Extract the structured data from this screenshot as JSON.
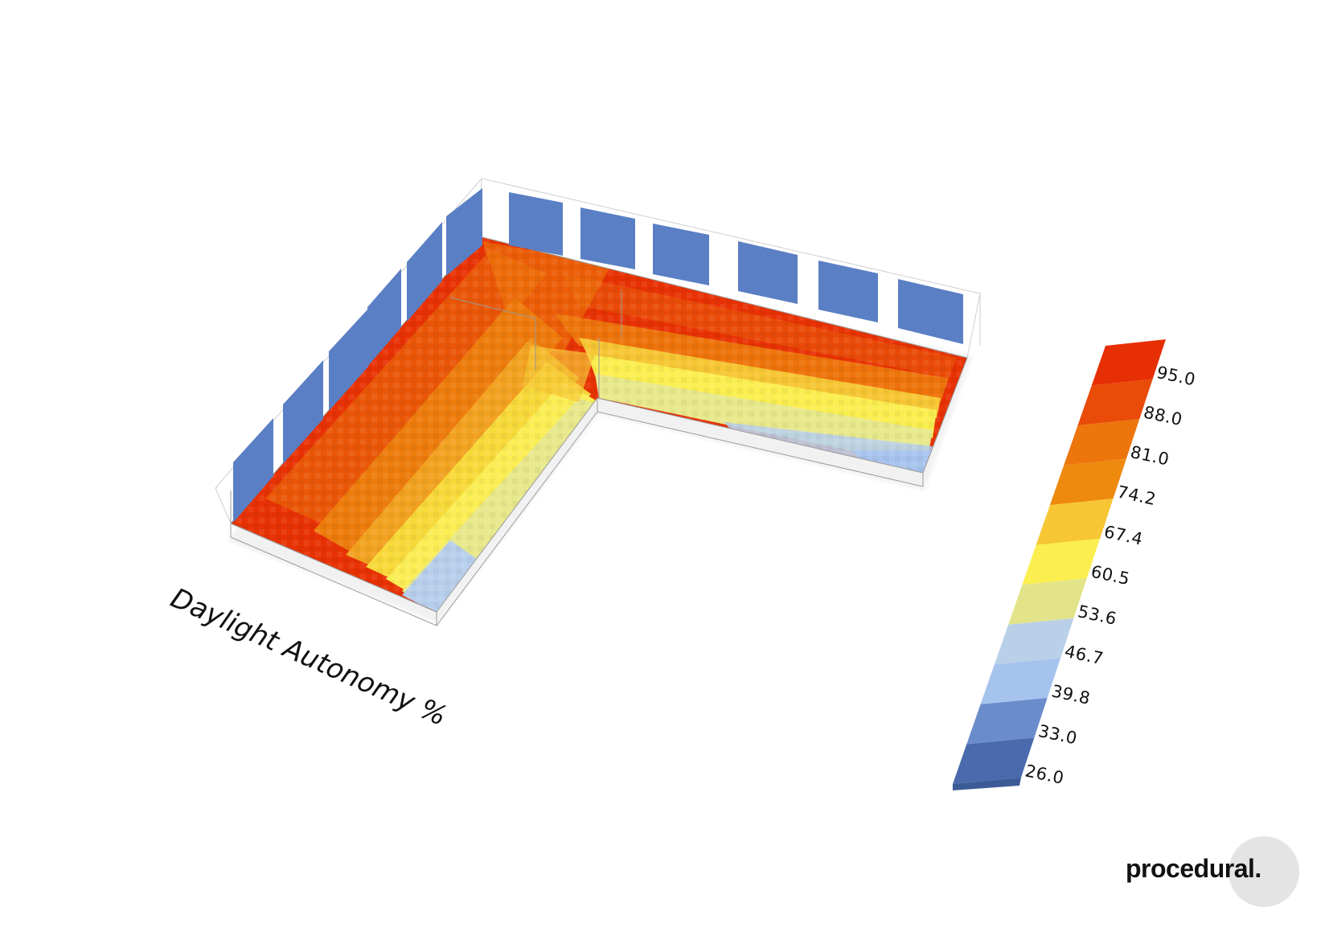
{
  "title": "Daylight Autonomy %",
  "brand": "procedural.",
  "colors": {
    "window": "#5a7fc4",
    "bin_colors": [
      "#4a6aad",
      "#6b8ccb",
      "#a6c3ee",
      "#b9d0e8",
      "#e3e48a",
      "#fbee50",
      "#f6c634",
      "#ee8a0e",
      "#ec750c",
      "#e94c08",
      "#e72f04"
    ]
  },
  "legend": {
    "labels": [
      "95.0",
      "88.0",
      "81.0",
      "74.2",
      "67.4",
      "60.5",
      "53.6",
      "46.7",
      "39.8",
      "33.0",
      "26.0"
    ]
  },
  "chart_data": {
    "type": "heatmap",
    "title": "Daylight Autonomy %",
    "colorbar_ticks": [
      95.0,
      88.0,
      81.0,
      74.2,
      67.4,
      60.5,
      53.6,
      46.7,
      39.8,
      33.0,
      26.0
    ],
    "range": [
      26.0,
      95.0
    ]
  }
}
